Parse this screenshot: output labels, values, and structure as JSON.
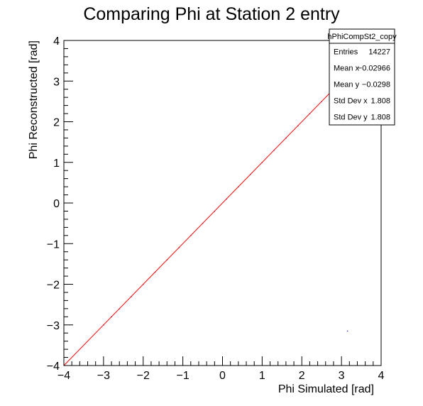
{
  "chart_data": {
    "type": "scatter",
    "title": "Comparing Phi at Station 2 entry",
    "xlabel": "Phi Simulated [rad]",
    "ylabel": "Phi Reconstructed [rad]",
    "xlim": [
      -4,
      4
    ],
    "ylim": [
      -4,
      4
    ],
    "xticks": [
      -4,
      -3,
      -2,
      -1,
      0,
      1,
      2,
      3,
      4
    ],
    "yticks": [
      -4,
      -3,
      -2,
      -1,
      0,
      1,
      2,
      3,
      4
    ],
    "xtick_labels": [
      "−4",
      "−3",
      "−2",
      "−1",
      "0",
      "1",
      "2",
      "3",
      "4"
    ],
    "ytick_labels": [
      "−4",
      "−3",
      "−2",
      "−1",
      "0",
      "1",
      "2",
      "3",
      "4"
    ],
    "grid": false,
    "series": [
      {
        "x": [
          -3.0,
          -2.8,
          -2.6,
          -2.3,
          -2.0,
          -1.7,
          -1.4,
          -1.1,
          -0.8,
          -0.5,
          -0.2,
          0.1,
          0.4,
          0.7,
          1.0,
          1.3,
          1.6,
          1.9,
          2.2,
          2.5,
          2.8,
          3.0,
          3.15
        ],
        "y": [
          -3.0,
          -2.8,
          -2.6,
          -2.3,
          -2.0,
          -1.7,
          -1.4,
          -1.1,
          -0.8,
          -0.5,
          -0.2,
          0.1,
          0.4,
          0.7,
          1.0,
          1.3,
          1.6,
          1.9,
          2.2,
          2.5,
          2.8,
          3.0,
          -3.15
        ],
        "color": "#3030c8"
      }
    ],
    "fit_line": {
      "x": [
        -4,
        4
      ],
      "y": [
        -4,
        4
      ],
      "color": "#ff0000"
    },
    "stats_box": {
      "title": "hPhiCompSt2_copy",
      "rows": [
        {
          "label": "Entries",
          "value": "14227"
        },
        {
          "label": "Mean x",
          "value": "−0.02966"
        },
        {
          "label": "Mean y",
          "value": "−0.0298"
        },
        {
          "label": "Std Dev x",
          "value": "1.808"
        },
        {
          "label": "Std Dev y",
          "value": "1.808"
        }
      ]
    }
  }
}
